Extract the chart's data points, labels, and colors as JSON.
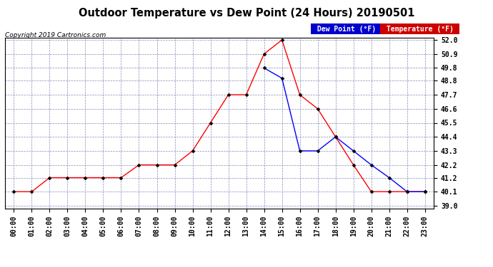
{
  "title": "Outdoor Temperature vs Dew Point (24 Hours) 20190501",
  "copyright_text": "Copyright 2019 Cartronics.com",
  "x_labels": [
    "00:00",
    "01:00",
    "02:00",
    "03:00",
    "04:00",
    "05:00",
    "06:00",
    "07:00",
    "08:00",
    "09:00",
    "10:00",
    "11:00",
    "12:00",
    "13:00",
    "14:00",
    "15:00",
    "16:00",
    "17:00",
    "18:00",
    "19:00",
    "20:00",
    "21:00",
    "22:00",
    "23:00"
  ],
  "temperature_x": [
    0,
    1,
    2,
    3,
    4,
    5,
    6,
    7,
    8,
    9,
    10,
    11,
    12,
    13,
    14,
    15,
    16,
    17,
    18,
    19,
    20,
    21,
    22,
    23
  ],
  "temperature_y": [
    40.1,
    40.1,
    41.2,
    41.2,
    41.2,
    41.2,
    41.2,
    42.2,
    42.2,
    42.2,
    43.3,
    45.5,
    47.7,
    47.7,
    50.9,
    52.0,
    47.7,
    46.6,
    44.4,
    42.2,
    40.1,
    40.1,
    40.1,
    40.1
  ],
  "dewpoint_x": [
    14,
    15,
    16,
    17,
    18,
    19,
    20,
    21,
    22,
    23
  ],
  "dewpoint_y": [
    49.8,
    49.0,
    43.3,
    43.3,
    44.4,
    43.3,
    42.2,
    41.2,
    40.1,
    40.1
  ],
  "temp_color": "#ff0000",
  "dew_color": "#0000ff",
  "background_color": "#ffffff",
  "grid_color": "#aaaaaa",
  "ylim_min": 39.0,
  "ylim_max": 52.0,
  "yticks": [
    39.0,
    40.1,
    41.2,
    42.2,
    43.3,
    44.4,
    45.5,
    46.6,
    47.7,
    48.8,
    49.8,
    50.9,
    52.0
  ],
  "legend_dew_bg": "#0000cc",
  "legend_temp_bg": "#cc0000",
  "title_fontsize": 10.5,
  "tick_fontsize": 7,
  "marker": "D",
  "marker_size": 2.5
}
